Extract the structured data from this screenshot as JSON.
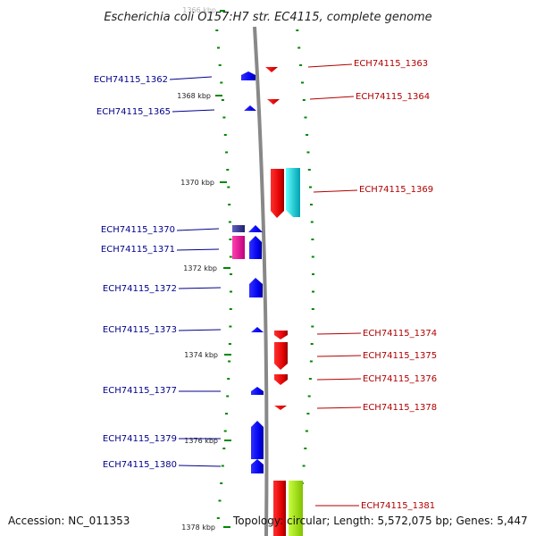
{
  "title": "Escherichia coli O157:H7 str. EC4115, complete genome",
  "colors": {
    "forward": "#e00000",
    "reverse": "#0000ee",
    "track_dash": "#008800",
    "backbone": "#888888"
  },
  "ticks": [
    "1366 kbp",
    "1368 kbp",
    "1370 kbp",
    "1372 kbp",
    "1374 kbp",
    "1376 kbp",
    "1378 kbp"
  ],
  "genes_left": [
    "ECH74115_1362",
    "ECH74115_1365",
    "ECH74115_1370",
    "ECH74115_1371",
    "ECH74115_1372",
    "ECH74115_1373",
    "ECH74115_1377",
    "ECH74115_1379",
    "ECH74115_1380"
  ],
  "genes_right": [
    "ECH74115_1363",
    "ECH74115_1364",
    "ECH74115_1369",
    "ECH74115_1374",
    "ECH74115_1375",
    "ECH74115_1376",
    "ECH74115_1378",
    "ECH74115_1381"
  ],
  "footer": {
    "accession": "Accession: NC_011353",
    "topology": "Topology: circular; Length: 5,572,075 bp; Genes: 5,447"
  }
}
